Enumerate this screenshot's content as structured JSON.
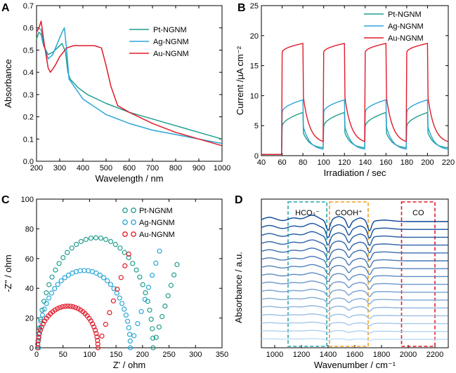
{
  "panels": {
    "A": {
      "letter": "A"
    },
    "B": {
      "letter": "B"
    },
    "C": {
      "letter": "C"
    },
    "D": {
      "letter": "D"
    }
  },
  "colors": {
    "pt": "#1f9e8e",
    "ag": "#2aa6d8",
    "au": "#e01a2a"
  },
  "chart_data": [
    {
      "id": "A",
      "type": "line",
      "xlabel": "Wavelength / nm",
      "ylabel": "Absorbance",
      "xlim": [
        200,
        1000
      ],
      "ylim": [
        0.0,
        0.7
      ],
      "xticks": [
        200,
        300,
        400,
        500,
        600,
        700,
        800,
        900,
        1000
      ],
      "yticks": [
        0.0,
        0.1,
        0.2,
        0.3,
        0.4,
        0.5,
        0.6,
        0.7
      ],
      "ytick_labels": [
        "0.0",
        "0.1",
        "0.2",
        "0.3",
        "0.4",
        "0.5",
        "0.6",
        "0.7"
      ],
      "legend": [
        "Pt-NGNM",
        "Ag-NGNM",
        "Au-NGNM"
      ],
      "series": [
        {
          "name": "Pt-NGNM",
          "color": "#1f9e8e",
          "x": [
            200,
            210,
            220,
            230,
            250,
            270,
            290,
            310,
            325,
            335,
            345,
            380,
            420,
            500,
            600,
            700,
            800,
            900,
            1000
          ],
          "y": [
            0.55,
            0.58,
            0.57,
            0.52,
            0.48,
            0.49,
            0.51,
            0.53,
            0.49,
            0.4,
            0.37,
            0.33,
            0.3,
            0.26,
            0.22,
            0.19,
            0.16,
            0.13,
            0.1
          ]
        },
        {
          "name": "Ag-NGNM",
          "color": "#2aa6d8",
          "x": [
            200,
            210,
            220,
            230,
            250,
            270,
            290,
            310,
            320,
            330,
            340,
            400,
            500,
            600,
            700,
            800,
            900,
            1000
          ],
          "y": [
            0.58,
            0.6,
            0.59,
            0.53,
            0.46,
            0.48,
            0.53,
            0.58,
            0.6,
            0.5,
            0.37,
            0.28,
            0.21,
            0.17,
            0.14,
            0.12,
            0.1,
            0.08
          ]
        },
        {
          "name": "Au-NGNM",
          "color": "#e01a2a",
          "x": [
            200,
            210,
            220,
            230,
            250,
            260,
            280,
            300,
            330,
            360,
            400,
            450,
            480,
            500,
            520,
            550,
            600,
            700,
            800,
            900,
            1000
          ],
          "y": [
            0.58,
            0.6,
            0.63,
            0.55,
            0.42,
            0.4,
            0.43,
            0.47,
            0.51,
            0.52,
            0.52,
            0.52,
            0.51,
            0.43,
            0.34,
            0.25,
            0.22,
            0.17,
            0.13,
            0.1,
            0.07
          ]
        }
      ]
    },
    {
      "id": "B",
      "type": "line",
      "xlabel": "Irradiation / sec",
      "ylabel": "Current /µA cm⁻²",
      "xlim": [
        40,
        220
      ],
      "ylim": [
        0,
        25
      ],
      "xticks": [
        40,
        60,
        80,
        100,
        120,
        140,
        160,
        180,
        200,
        220
      ],
      "yticks": [
        0,
        5,
        10,
        15,
        20,
        25
      ],
      "legend": [
        "Pt-NGNM",
        "Ag-NGNM",
        "Au-NGNM"
      ],
      "on_intervals": [
        [
          60,
          80
        ],
        [
          100,
          120
        ],
        [
          140,
          160
        ],
        [
          180,
          200
        ]
      ],
      "series": [
        {
          "name": "Pt-NGNM",
          "color": "#1f9e8e",
          "base": 0.2,
          "step": 4.8,
          "peak": 7.2,
          "decay_to": 1.2
        },
        {
          "name": "Ag-NGNM",
          "color": "#2aa6d8",
          "base": 0.2,
          "step": 7.2,
          "peak": 9.3,
          "decay_to": 0.9
        },
        {
          "name": "Au-NGNM",
          "color": "#e01a2a",
          "base": 0.2,
          "step": 17.2,
          "peak": 18.7,
          "decay_to": 2.0
        }
      ]
    },
    {
      "id": "C",
      "type": "scatter",
      "xlabel": "Z' / ohm",
      "ylabel": "-Z'' / ohm",
      "xlim": [
        0,
        350
      ],
      "ylim": [
        0,
        100
      ],
      "xticks": [
        0,
        50,
        100,
        150,
        200,
        250,
        300,
        350
      ],
      "yticks": [
        0,
        20,
        40,
        60,
        80,
        100
      ],
      "legend": [
        "Pt-NGNM",
        "Ag-NGNM",
        "Au-NGNM"
      ],
      "series": [
        {
          "name": "Pt-NGNM",
          "color": "#1f9e8e",
          "center": 112,
          "radius": 108,
          "height": 74,
          "end_x": 220,
          "tail_to": [
            265,
            56
          ]
        },
        {
          "name": "Ag-NGNM",
          "color": "#2aa6d8",
          "center": 90,
          "radius": 87,
          "height": 52,
          "end_x": 177,
          "tail_to": [
            232,
            65
          ]
        },
        {
          "name": "Au-NGNM",
          "color": "#e01a2a",
          "center": 59,
          "radius": 57,
          "height": 28,
          "end_x": 116,
          "tail_to": [
            174,
            63
          ]
        }
      ]
    },
    {
      "id": "D",
      "type": "line",
      "xlabel": "Wavenumber / cm⁻¹",
      "ylabel": "Absorbance / a.u.",
      "xlim": [
        900,
        2300
      ],
      "xticks": [
        1000,
        1200,
        1400,
        1600,
        1800,
        2000,
        2200
      ],
      "n_spectra": 16,
      "regions": [
        {
          "label": "HCO₃⁻",
          "from": 1100,
          "to": 1390,
          "color": "#2aa6a6"
        },
        {
          "label": "COOH⁺",
          "from": 1410,
          "to": 1700,
          "color": "#f0a01e"
        },
        {
          "label": "CO",
          "from": 1950,
          "to": 2200,
          "color": "#e01a2a"
        }
      ]
    }
  ]
}
